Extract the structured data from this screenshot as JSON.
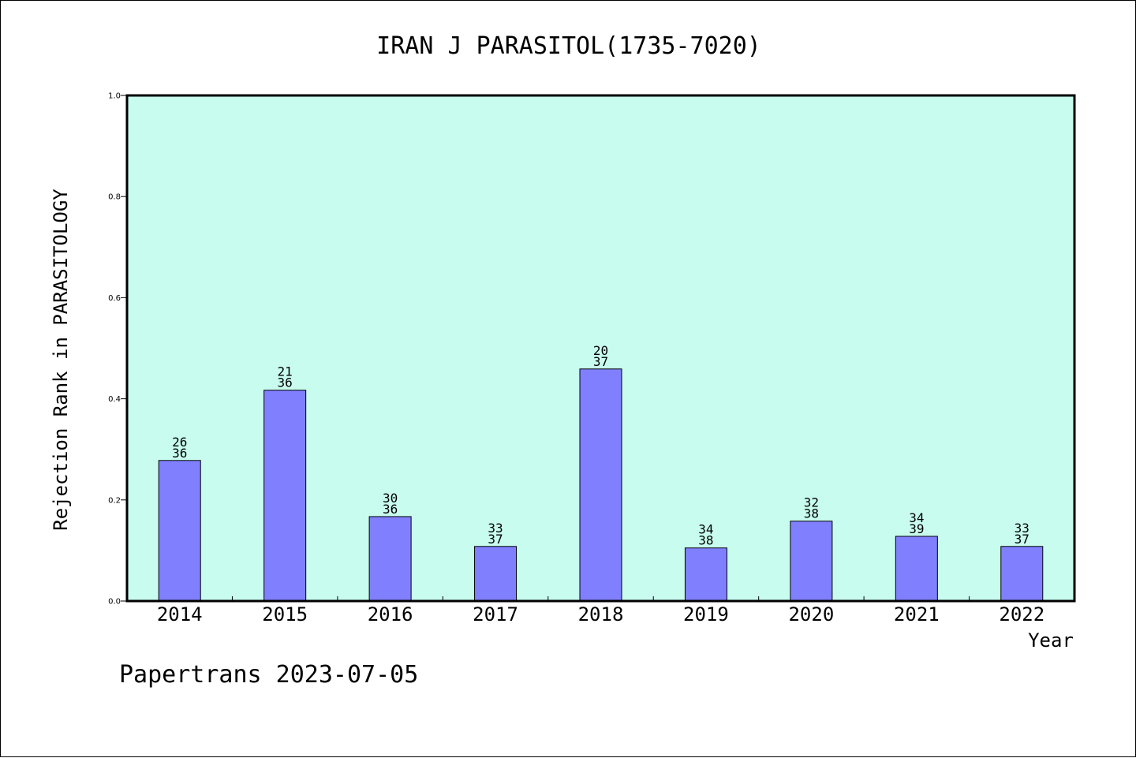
{
  "chart_data": {
    "type": "bar",
    "title": "IRAN J PARASITOL(1735-7020)",
    "xlabel": "Year",
    "ylabel": "Rejection Rank in PARASITOLOGY",
    "ylim": [
      0,
      1.0
    ],
    "yticks": [
      "0.0",
      "0.2",
      "0.4",
      "0.6",
      "0.8",
      "1.0"
    ],
    "categories": [
      "2014",
      "2015",
      "2016",
      "2017",
      "2018",
      "2019",
      "2020",
      "2021",
      "2022"
    ],
    "values": [
      0.278,
      0.417,
      0.167,
      0.108,
      0.459,
      0.105,
      0.158,
      0.128,
      0.108
    ],
    "labels_top": [
      "26",
      "21",
      "30",
      "33",
      "20",
      "34",
      "32",
      "34",
      "33"
    ],
    "labels_bottom": [
      "36",
      "36",
      "36",
      "37",
      "37",
      "38",
      "38",
      "39",
      "37"
    ],
    "grid": false,
    "plot_background": "#c8fcee",
    "bar_color": "#8080ff"
  },
  "footer": "Papertrans 2023-07-05"
}
